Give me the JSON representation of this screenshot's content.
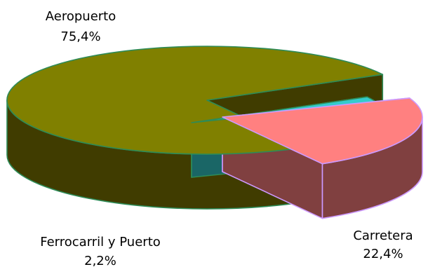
{
  "chart_data": {
    "type": "pie",
    "style": "3d-exploded",
    "title": "",
    "legend": "none",
    "slices": [
      {
        "name": "Aeropuerto",
        "label": "Aeropuerto",
        "value": 75.4,
        "value_label": "75,4%",
        "top_color": "#808000",
        "side_color": "#403C00",
        "edge_color": "#2E8B57"
      },
      {
        "name": "Ferrocarril y Puerto",
        "label": "Ferrocarril y Puerto",
        "value": 2.2,
        "value_label": "2,2%",
        "top_color": "#33CCCC",
        "side_color": "#1A6666",
        "edge_color": "#2E8B57"
      },
      {
        "name": "Carretera",
        "label": "Carretera",
        "value": 22.4,
        "value_label": "22,4%",
        "top_color": "#FF8080",
        "side_color": "#804040",
        "edge_color": "#CC99FF"
      }
    ]
  }
}
